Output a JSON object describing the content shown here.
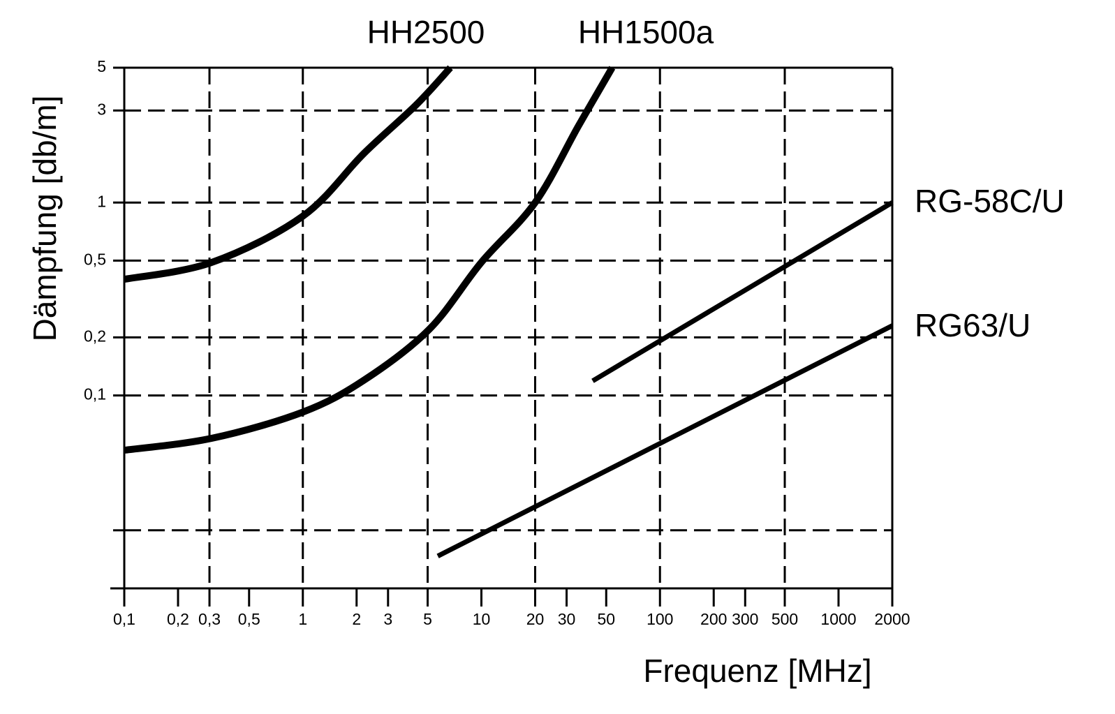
{
  "chart_data": {
    "type": "line",
    "x_label": "Frequenz [MHz]",
    "y_label": "Dämpfung [db/m]",
    "log_x": true,
    "log_y": true,
    "xlim": [
      0.1,
      2000
    ],
    "ylim": [
      0.01,
      5
    ],
    "xticks": [
      {
        "value": 0.1,
        "label": "0,1"
      },
      {
        "value": 0.2,
        "label": "0,2"
      },
      {
        "value": 0.3,
        "label": "0,3"
      },
      {
        "value": 0.5,
        "label": "0,5"
      },
      1,
      2,
      3,
      5,
      10,
      20,
      30,
      50,
      100,
      200,
      300,
      500,
      1000,
      2000
    ],
    "xgrid": [
      0.3,
      1,
      5,
      20,
      100,
      500
    ],
    "yticks": [
      5,
      3,
      1,
      {
        "value": 0.5,
        "label": "0,5"
      },
      {
        "value": 0.2,
        "label": "0,2"
      },
      {
        "value": 0.1,
        "label": "0,1"
      },
      {
        "value": 0.02,
        "label": null
      }
    ],
    "grid": true,
    "series": [
      {
        "name": "HH2500",
        "color": "#000000",
        "x": [
          0.1,
          0.31,
          1,
          2.2,
          4.3,
          6.7
        ],
        "values": [
          0.4,
          0.49,
          0.85,
          1.8,
          3.2,
          5
        ]
      },
      {
        "name": "HH1500a",
        "color": "#000000",
        "x": [
          0.1,
          0.31,
          1,
          2.2,
          5.1,
          10,
          20,
          35,
          54
        ],
        "values": [
          0.052,
          0.06,
          0.082,
          0.12,
          0.22,
          0.49,
          1,
          2.5,
          5
        ]
      },
      {
        "name": "RG-58C/U",
        "color": "#000000",
        "x": [
          42,
          2000
        ],
        "values": [
          0.119,
          1
        ]
      },
      {
        "name": "RG63/U",
        "color": "#000000",
        "x": [
          5.7,
          2000
        ],
        "values": [
          0.0147,
          0.23
        ]
      }
    ]
  }
}
